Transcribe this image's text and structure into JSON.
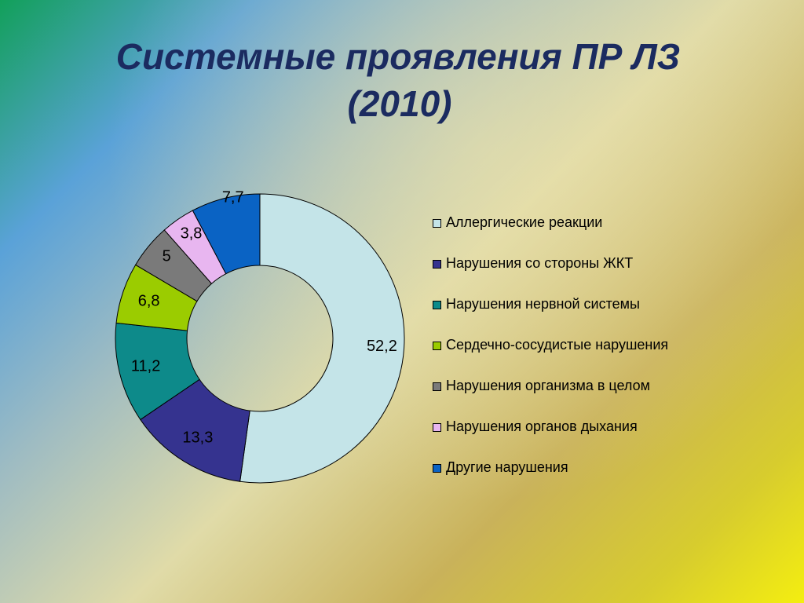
{
  "title": {
    "line1": "Системные проявления ПР ЛЗ",
    "line2": "(2010)"
  },
  "chart_data": {
    "type": "pie",
    "variant": "doughnut",
    "title": "Системные проявления ПР ЛЗ (2010)",
    "legend_position": "right",
    "categories": [
      "Аллергические реакции",
      "Нарушения со стороны ЖКТ",
      "Нарушения нервной системы",
      "Сердечно-сосудистые нарушения",
      "Нарушения организма в целом",
      "Нарушения органов дыхания",
      "Другие нарушения"
    ],
    "values": [
      52.2,
      13.3,
      11.2,
      6.8,
      5,
      3.8,
      7.7
    ],
    "value_labels": [
      "52,2",
      "13,3",
      "11,2",
      "6,8",
      "5",
      "3,8",
      "7,7"
    ],
    "colors": [
      "#c4e4e8",
      "#35338f",
      "#0d8a8a",
      "#9bcc00",
      "#7a7a7a",
      "#e8b6f0",
      "#0a63c4"
    ]
  }
}
